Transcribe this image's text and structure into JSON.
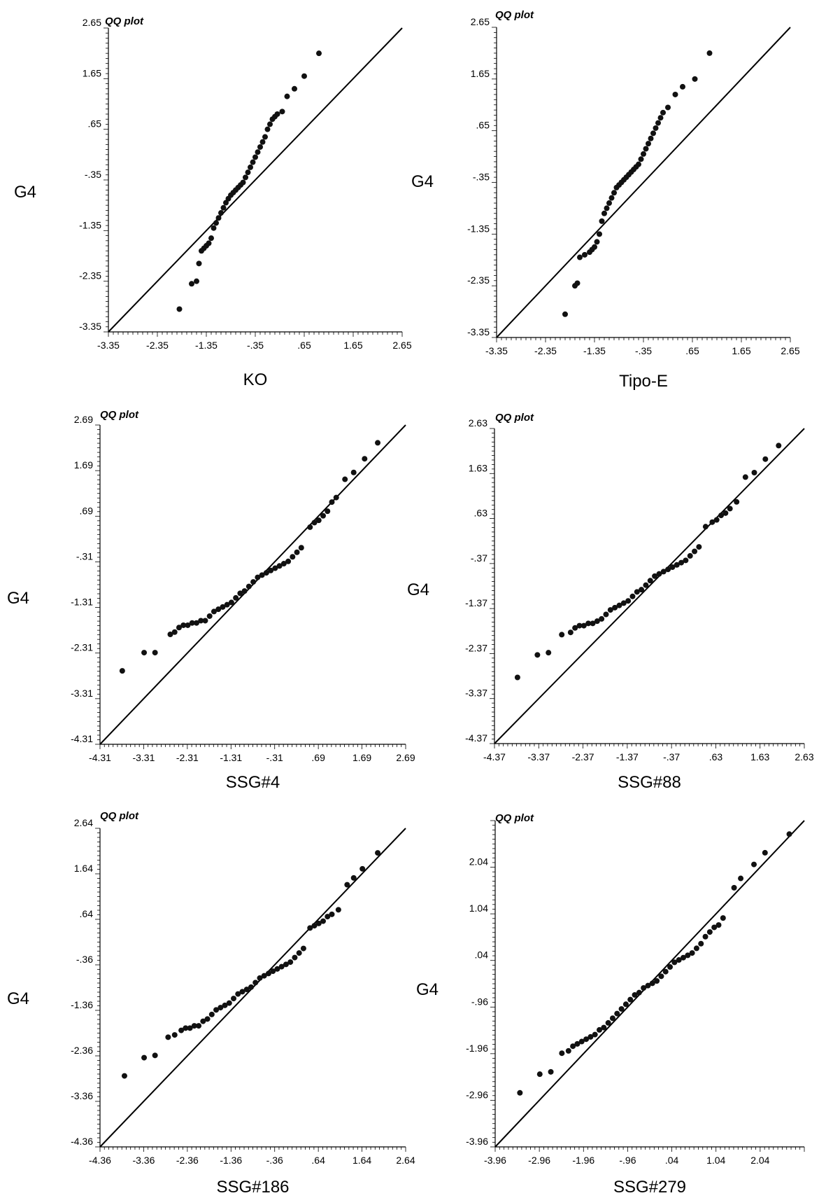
{
  "chart_data": [
    {
      "type": "scatter",
      "title": "QQ plot",
      "xlabel": "KO",
      "ylabel": "G4",
      "xlim": [
        -3.35,
        2.65
      ],
      "ylim": [
        -3.35,
        2.65
      ],
      "ticks": [
        -3.35,
        -2.35,
        -1.35,
        -0.35,
        0.65,
        1.65,
        2.65
      ],
      "tick_labels": [
        "-3.35",
        "-2.35",
        "-1.35",
        "-.35",
        ".65",
        "1.65",
        "2.65"
      ],
      "x": [
        -1.9,
        -1.65,
        -1.55,
        -1.5,
        -1.45,
        -1.4,
        -1.35,
        -1.3,
        -1.25,
        -1.2,
        -1.15,
        -1.1,
        -1.05,
        -1.0,
        -0.95,
        -0.9,
        -0.85,
        -0.8,
        -0.75,
        -0.7,
        -0.65,
        -0.6,
        -0.55,
        -0.5,
        -0.45,
        -0.4,
        -0.35,
        -0.3,
        -0.25,
        -0.2,
        -0.15,
        -0.1,
        -0.05,
        0.0,
        0.05,
        0.1,
        0.2,
        0.3,
        0.45,
        0.65,
        0.95
      ],
      "y": [
        -2.9,
        -2.4,
        -2.35,
        -2.0,
        -1.75,
        -1.7,
        -1.65,
        -1.6,
        -1.5,
        -1.3,
        -1.2,
        -1.1,
        -1.0,
        -0.9,
        -0.8,
        -0.72,
        -0.65,
        -0.6,
        -0.55,
        -0.5,
        -0.45,
        -0.4,
        -0.3,
        -0.2,
        -0.1,
        0.0,
        0.1,
        0.2,
        0.3,
        0.4,
        0.5,
        0.65,
        0.75,
        0.85,
        0.9,
        0.95,
        1.0,
        1.3,
        1.45,
        1.7,
        2.15
      ]
    },
    {
      "type": "scatter",
      "title": "QQ plot",
      "xlabel": "Tipo-E",
      "ylabel": "G4",
      "xlim": [
        -3.35,
        2.65
      ],
      "ylim": [
        -3.35,
        2.65
      ],
      "ticks": [
        -3.35,
        -2.35,
        -1.35,
        -0.35,
        0.65,
        1.65,
        2.65
      ],
      "tick_labels": [
        "-3.35",
        "-2.35",
        "-1.35",
        "-.35",
        ".65",
        "1.65",
        "2.65"
      ],
      "x": [
        -1.95,
        -1.75,
        -1.7,
        -1.65,
        -1.55,
        -1.45,
        -1.4,
        -1.35,
        -1.3,
        -1.25,
        -1.2,
        -1.15,
        -1.1,
        -1.05,
        -1.0,
        -0.95,
        -0.9,
        -0.85,
        -0.8,
        -0.75,
        -0.7,
        -0.65,
        -0.6,
        -0.55,
        -0.5,
        -0.45,
        -0.4,
        -0.35,
        -0.3,
        -0.25,
        -0.2,
        -0.15,
        -0.1,
        -0.05,
        0.0,
        0.05,
        0.15,
        0.3,
        0.45,
        0.7,
        1.0
      ],
      "y": [
        -2.9,
        -2.35,
        -2.3,
        -1.8,
        -1.75,
        -1.7,
        -1.65,
        -1.6,
        -1.5,
        -1.35,
        -1.1,
        -0.95,
        -0.85,
        -0.75,
        -0.65,
        -0.55,
        -0.45,
        -0.4,
        -0.35,
        -0.3,
        -0.25,
        -0.2,
        -0.15,
        -0.1,
        -0.05,
        0.0,
        0.1,
        0.2,
        0.3,
        0.4,
        0.5,
        0.6,
        0.7,
        0.8,
        0.9,
        1.0,
        1.1,
        1.35,
        1.5,
        1.65,
        2.15
      ]
    },
    {
      "type": "scatter",
      "title": "QQ plot",
      "xlabel": "SSG#4",
      "ylabel": "G4",
      "xlim": [
        -4.31,
        2.69
      ],
      "ylim": [
        -4.31,
        2.69
      ],
      "ticks": [
        -4.31,
        -3.31,
        -2.31,
        -1.31,
        -0.31,
        0.69,
        1.69,
        2.69
      ],
      "tick_labels": [
        "-4.31",
        "-3.31",
        "-2.31",
        "-1.31",
        "-.31",
        ".69",
        "1.69",
        "2.69"
      ],
      "x": [
        -3.8,
        -3.3,
        -3.05,
        -2.7,
        -2.6,
        -2.5,
        -2.4,
        -2.3,
        -2.2,
        -2.1,
        -2.0,
        -1.9,
        -1.8,
        -1.7,
        -1.6,
        -1.5,
        -1.4,
        -1.3,
        -1.2,
        -1.1,
        -1.0,
        -0.9,
        -0.8,
        -0.7,
        -0.6,
        -0.5,
        -0.4,
        -0.3,
        -0.2,
        -0.1,
        0.0,
        0.1,
        0.2,
        0.3,
        0.5,
        0.6,
        0.7,
        0.8,
        0.9,
        1.0,
        1.1,
        1.3,
        1.5,
        1.75,
        2.05
      ],
      "y": [
        -2.7,
        -2.3,
        -2.3,
        -1.9,
        -1.85,
        -1.75,
        -1.7,
        -1.7,
        -1.65,
        -1.65,
        -1.6,
        -1.6,
        -1.5,
        -1.4,
        -1.35,
        -1.3,
        -1.25,
        -1.2,
        -1.1,
        -1.0,
        -0.95,
        -0.85,
        -0.75,
        -0.65,
        -0.6,
        -0.55,
        -0.5,
        -0.45,
        -0.4,
        -0.35,
        -0.3,
        -0.2,
        -0.1,
        0.0,
        0.45,
        0.55,
        0.6,
        0.7,
        0.8,
        1.0,
        1.1,
        1.5,
        1.65,
        1.95,
        2.3
      ]
    },
    {
      "type": "scatter",
      "title": "QQ plot",
      "xlabel": "SSG#88",
      "ylabel": "G4",
      "xlim": [
        -4.37,
        2.63
      ],
      "ylim": [
        -4.37,
        2.63
      ],
      "ticks": [
        -4.37,
        -3.37,
        -2.37,
        -1.37,
        -0.37,
        0.63,
        1.63,
        2.63
      ],
      "tick_labels": [
        "-4.37",
        "-3.37",
        "-2.37",
        "-1.37",
        "-.37",
        ".63",
        "1.63",
        "2.63"
      ],
      "x": [
        -3.85,
        -3.4,
        -3.15,
        -2.85,
        -2.65,
        -2.55,
        -2.45,
        -2.35,
        -2.25,
        -2.15,
        -2.05,
        -1.95,
        -1.85,
        -1.75,
        -1.65,
        -1.55,
        -1.45,
        -1.35,
        -1.25,
        -1.15,
        -1.05,
        -0.95,
        -0.85,
        -0.75,
        -0.65,
        -0.55,
        -0.45,
        -0.35,
        -0.25,
        -0.15,
        -0.05,
        0.05,
        0.15,
        0.25,
        0.4,
        0.55,
        0.65,
        0.75,
        0.85,
        0.95,
        1.1,
        1.3,
        1.5,
        1.75,
        2.05
      ],
      "y": [
        -2.9,
        -2.4,
        -2.35,
        -1.95,
        -1.9,
        -1.8,
        -1.75,
        -1.75,
        -1.7,
        -1.7,
        -1.65,
        -1.6,
        -1.5,
        -1.4,
        -1.35,
        -1.3,
        -1.25,
        -1.2,
        -1.1,
        -1.0,
        -0.95,
        -0.85,
        -0.75,
        -0.65,
        -0.6,
        -0.55,
        -0.5,
        -0.45,
        -0.4,
        -0.35,
        -0.3,
        -0.2,
        -0.1,
        0.0,
        0.45,
        0.55,
        0.6,
        0.7,
        0.75,
        0.85,
        1.0,
        1.55,
        1.65,
        1.95,
        2.25
      ]
    },
    {
      "type": "scatter",
      "title": "QQ plot",
      "xlabel": "SSG#186",
      "ylabel": "G4",
      "xlim": [
        -4.36,
        2.64
      ],
      "ylim": [
        -4.36,
        2.64
      ],
      "ticks": [
        -4.36,
        -3.36,
        -2.36,
        -1.36,
        -0.36,
        0.64,
        1.64,
        2.64
      ],
      "tick_labels": [
        "-4.36",
        "-3.36",
        "-2.36",
        "-1.36",
        "-.36",
        ".64",
        "1.64",
        "2.64"
      ],
      "x": [
        -3.8,
        -3.35,
        -3.1,
        -2.8,
        -2.65,
        -2.5,
        -2.4,
        -2.3,
        -2.2,
        -2.1,
        -2.0,
        -1.9,
        -1.8,
        -1.7,
        -1.6,
        -1.5,
        -1.4,
        -1.3,
        -1.2,
        -1.1,
        -1.0,
        -0.9,
        -0.8,
        -0.7,
        -0.6,
        -0.5,
        -0.4,
        -0.3,
        -0.2,
        -0.1,
        0.0,
        0.1,
        0.2,
        0.3,
        0.45,
        0.55,
        0.65,
        0.75,
        0.85,
        0.95,
        1.1,
        1.3,
        1.45,
        1.65,
        2.0
      ],
      "y": [
        -2.8,
        -2.4,
        -2.35,
        -1.95,
        -1.9,
        -1.8,
        -1.75,
        -1.75,
        -1.7,
        -1.7,
        -1.6,
        -1.55,
        -1.45,
        -1.35,
        -1.3,
        -1.25,
        -1.2,
        -1.1,
        -1.0,
        -0.95,
        -0.9,
        -0.85,
        -0.75,
        -0.65,
        -0.6,
        -0.55,
        -0.5,
        -0.45,
        -0.4,
        -0.35,
        -0.3,
        -0.2,
        -0.1,
        0.0,
        0.45,
        0.5,
        0.55,
        0.6,
        0.7,
        0.75,
        0.85,
        1.4,
        1.55,
        1.75,
        2.1
      ]
    },
    {
      "type": "scatter",
      "title": "QQ plot",
      "xlabel": "SSG#279",
      "ylabel": "G4",
      "xlim": [
        -3.96,
        3.04
      ],
      "ylim": [
        -3.96,
        3.04
      ],
      "ticks": [
        -3.96,
        -2.96,
        -1.96,
        -0.96,
        0.04,
        1.04,
        2.04
      ],
      "tick_labels": [
        "-3.96",
        "-2.96",
        "-1.96",
        "-.96",
        ".04",
        "1.04",
        "2.04"
      ],
      "x": [
        -3.4,
        -2.95,
        -2.7,
        -2.45,
        -2.3,
        -2.2,
        -2.1,
        -2.0,
        -1.9,
        -1.8,
        -1.7,
        -1.6,
        -1.5,
        -1.4,
        -1.3,
        -1.2,
        -1.1,
        -1.0,
        -0.9,
        -0.8,
        -0.7,
        -0.6,
        -0.5,
        -0.4,
        -0.3,
        -0.2,
        -0.1,
        0.0,
        0.1,
        0.2,
        0.3,
        0.4,
        0.5,
        0.6,
        0.7,
        0.8,
        0.9,
        1.0,
        1.1,
        1.2,
        1.45,
        1.6,
        1.9,
        2.15,
        2.7
      ],
      "y": [
        -2.8,
        -2.4,
        -2.35,
        -1.95,
        -1.9,
        -1.8,
        -1.75,
        -1.7,
        -1.65,
        -1.6,
        -1.55,
        -1.45,
        -1.4,
        -1.3,
        -1.2,
        -1.1,
        -1.0,
        -0.9,
        -0.8,
        -0.7,
        -0.65,
        -0.55,
        -0.5,
        -0.45,
        -0.4,
        -0.3,
        -0.2,
        -0.1,
        0.0,
        0.05,
        0.1,
        0.15,
        0.2,
        0.3,
        0.4,
        0.55,
        0.65,
        0.75,
        0.8,
        0.95,
        1.6,
        1.8,
        2.1,
        2.35,
        2.75
      ]
    }
  ]
}
